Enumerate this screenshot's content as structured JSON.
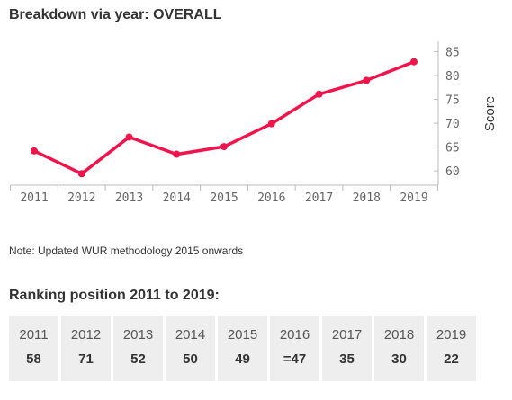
{
  "chart": {
    "title": "Breakdown via year: OVERALL"
  },
  "chart_data": {
    "type": "line",
    "title": "Breakdown via year: OVERALL",
    "xlabel": "",
    "ylabel": "Score",
    "categories": [
      "2011",
      "2012",
      "2013",
      "2014",
      "2015",
      "2016",
      "2017",
      "2018",
      "2019"
    ],
    "series": [
      {
        "values": [
          64.2,
          59.4,
          67.1,
          63.5,
          65.1,
          69.9,
          76.1,
          79.0,
          82.9
        ]
      }
    ],
    "yticks": [
      60,
      65,
      70,
      75,
      80,
      85
    ],
    "ylim": [
      57,
      87
    ],
    "y_axis_position": "right",
    "grid": false,
    "line_color": "#f0144c"
  },
  "note": "Note: Updated WUR methodology 2015 onwards",
  "ranking": {
    "title": "Ranking position 2011 to 2019:",
    "items": [
      {
        "year": "2011",
        "value": "58"
      },
      {
        "year": "2012",
        "value": "71"
      },
      {
        "year": "2013",
        "value": "52"
      },
      {
        "year": "2014",
        "value": "50"
      },
      {
        "year": "2015",
        "value": "49"
      },
      {
        "year": "2016",
        "value": "=47"
      },
      {
        "year": "2017",
        "value": "35"
      },
      {
        "year": "2018",
        "value": "30"
      },
      {
        "year": "2019",
        "value": "22"
      }
    ]
  }
}
